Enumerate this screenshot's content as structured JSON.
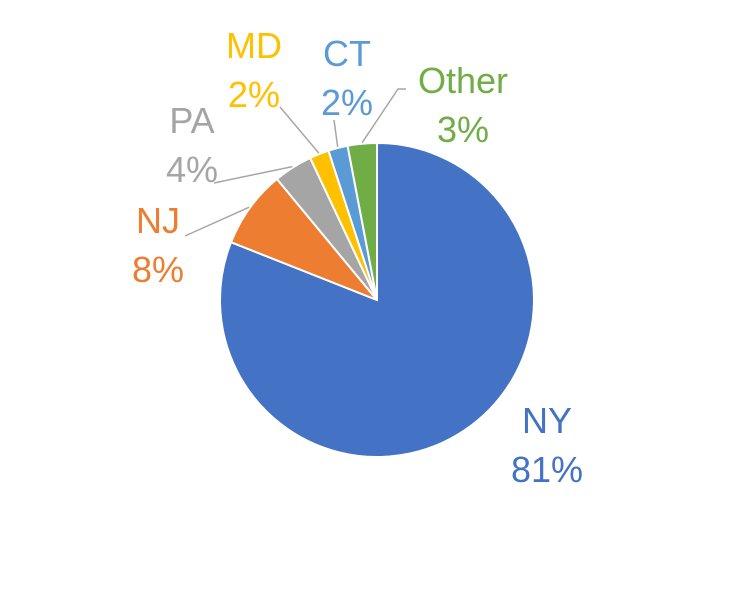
{
  "chart_data": {
    "type": "pie",
    "title": "",
    "slices": [
      {
        "label": "NY",
        "value": 81,
        "value_label": "81%",
        "color": "#4472C4"
      },
      {
        "label": "NJ",
        "value": 8,
        "value_label": "8%",
        "color": "#ED7D31"
      },
      {
        "label": "PA",
        "value": 4,
        "value_label": "4%",
        "color": "#A5A5A5"
      },
      {
        "label": "MD",
        "value": 2,
        "value_label": "2%",
        "color": "#FFC000"
      },
      {
        "label": "CT",
        "value": 2,
        "value_label": "2%",
        "color": "#5B9BD5"
      },
      {
        "label": "Other",
        "value": 3,
        "value_label": "3%",
        "color": "#70AD47"
      }
    ],
    "start": "12 o'clock",
    "direction": "clockwise (NY first)",
    "legend": "none",
    "leader_line_color": "#A6A6A6"
  }
}
